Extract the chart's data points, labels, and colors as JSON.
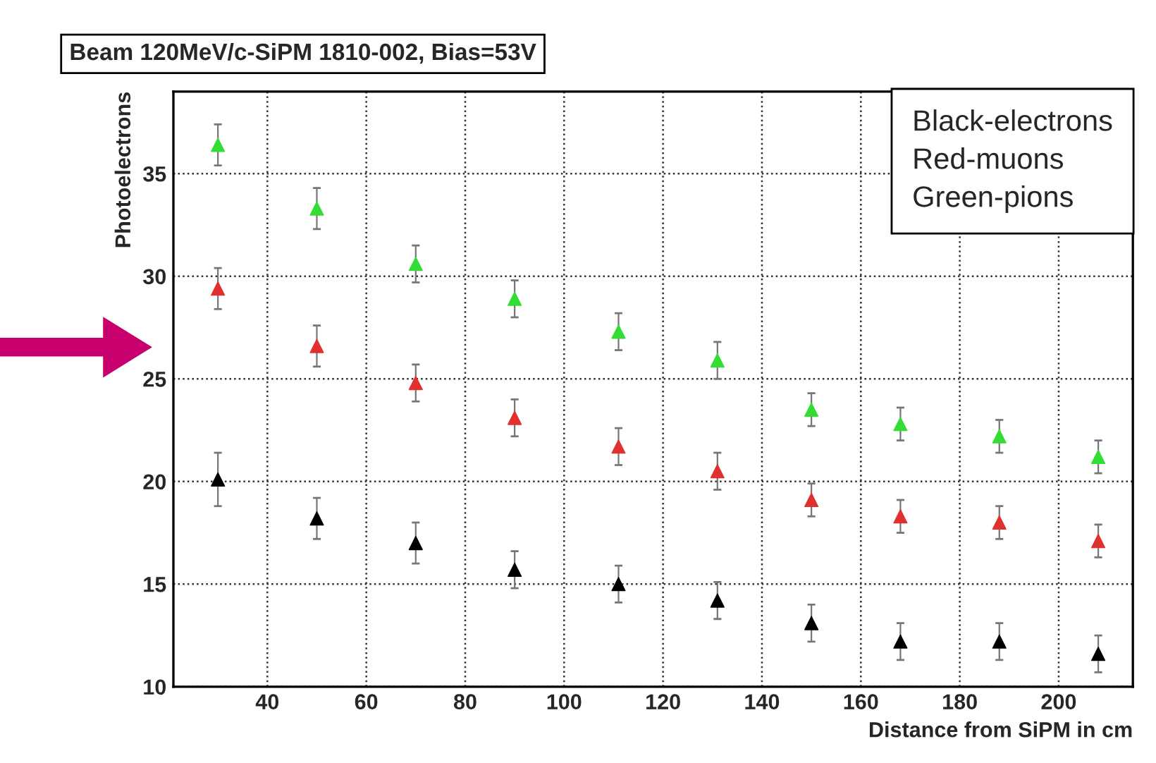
{
  "chart_data": {
    "type": "scatter",
    "title": "Beam 120MeV/c-SiPM 1810-002, Bias=53V",
    "xlabel": "Distance from SiPM in cm",
    "ylabel": "Photoelectrons",
    "x": [
      30,
      50,
      70,
      90,
      111,
      131,
      150,
      168,
      188,
      208
    ],
    "series": [
      {
        "color": "#000000",
        "values": [
          20.1,
          18.2,
          17.0,
          15.7,
          15.0,
          14.2,
          13.1,
          12.2,
          12.2,
          11.6
        ],
        "errors": [
          1.3,
          1.0,
          1.0,
          0.9,
          0.9,
          0.9,
          0.9,
          0.9,
          0.9,
          0.9
        ]
      },
      {
        "color": "#e03030",
        "values": [
          29.4,
          26.6,
          24.8,
          23.1,
          21.7,
          20.5,
          19.1,
          18.3,
          18.0,
          17.1
        ],
        "errors": [
          1.0,
          1.0,
          0.9,
          0.9,
          0.9,
          0.9,
          0.8,
          0.8,
          0.8,
          0.8
        ]
      },
      {
        "color": "#33dd33",
        "values": [
          36.4,
          33.3,
          30.6,
          28.9,
          27.3,
          25.9,
          23.5,
          22.8,
          22.2,
          21.2
        ],
        "errors": [
          1.0,
          1.0,
          0.9,
          0.9,
          0.9,
          0.9,
          0.8,
          0.8,
          0.8,
          0.8
        ]
      }
    ],
    "xlim": [
      21,
      215
    ],
    "ylim": [
      10,
      39
    ],
    "xticks": [
      40,
      60,
      80,
      100,
      120,
      140,
      160,
      180,
      200
    ],
    "yticks": [
      10,
      15,
      20,
      25,
      30,
      35
    ],
    "annotations": [
      "Black-electrons\nRed-muons\nGreen-pions"
    ],
    "grid": true,
    "marker": "triangle"
  }
}
